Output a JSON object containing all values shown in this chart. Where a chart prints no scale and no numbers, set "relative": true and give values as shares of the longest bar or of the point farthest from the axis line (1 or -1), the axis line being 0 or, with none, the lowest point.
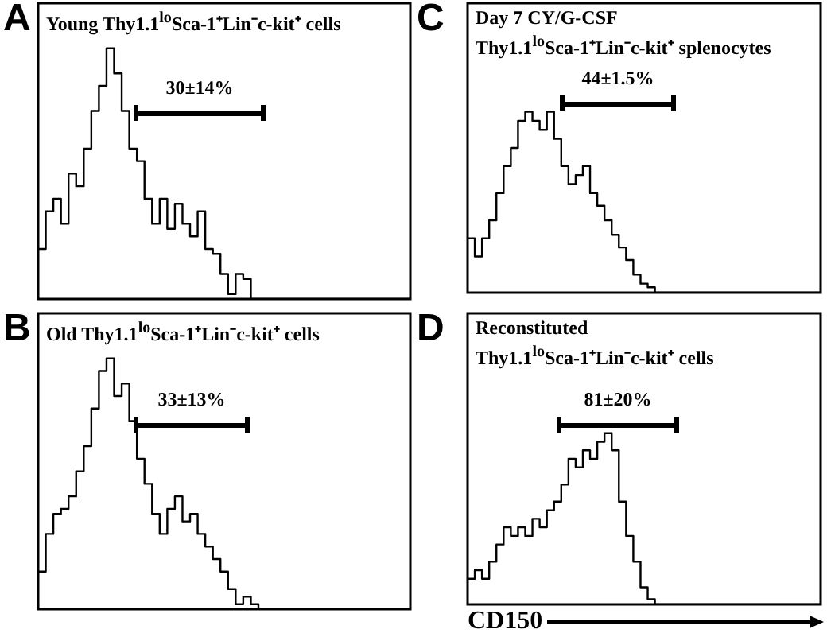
{
  "chart_data": [
    {
      "type": "step",
      "title": "Young Thy1.1$^{lo}$Sca-1⁺Lin⁻c-kit⁺ cells",
      "annotations": [
        "A",
        "30±14%"
      ],
      "relative": true,
      "color": "#000000",
      "categories": [
        null,
        null,
        null,
        null,
        null,
        null,
        null,
        null,
        null,
        null,
        null,
        null,
        null,
        null,
        null,
        null,
        null,
        null,
        null,
        null,
        null,
        null,
        null,
        null,
        null,
        null,
        null,
        null,
        null,
        null,
        null,
        null,
        null,
        null,
        null,
        null,
        null,
        null,
        null,
        null,
        null,
        null,
        null,
        null,
        null,
        null,
        null,
        null,
        null,
        null
      ],
      "values": [
        0.2,
        0.35,
        0.4,
        0.3,
        0.5,
        0.45,
        0.6,
        0.75,
        0.85,
        1.0,
        0.9,
        0.75,
        0.6,
        0.55,
        0.4,
        0.3,
        0.4,
        0.28,
        0.38,
        0.3,
        0.25,
        0.35,
        0.2,
        0.18,
        0.1,
        0.02,
        0.1,
        0.08,
        0,
        0,
        0,
        0,
        0,
        0,
        0,
        0,
        0,
        0,
        0,
        0,
        0,
        0,
        0,
        0,
        0,
        0,
        0,
        0,
        0,
        0
      ]
    },
    {
      "type": "step",
      "title": "Old Thy1.1$^{lo}$Sca-1⁺Lin⁻c-kit⁺ cells",
      "annotations": [
        "B",
        "33±13%"
      ],
      "relative": true,
      "color": "#000000",
      "categories": [
        null,
        null,
        null,
        null,
        null,
        null,
        null,
        null,
        null,
        null,
        null,
        null,
        null,
        null,
        null,
        null,
        null,
        null,
        null,
        null,
        null,
        null,
        null,
        null,
        null,
        null,
        null,
        null,
        null,
        null,
        null,
        null,
        null,
        null,
        null,
        null,
        null,
        null,
        null,
        null,
        null,
        null,
        null,
        null,
        null,
        null,
        null,
        null,
        null,
        null
      ],
      "values": [
        0.15,
        0.3,
        0.38,
        0.4,
        0.45,
        0.55,
        0.65,
        0.8,
        0.95,
        1.0,
        0.85,
        0.9,
        0.75,
        0.6,
        0.5,
        0.38,
        0.3,
        0.4,
        0.45,
        0.35,
        0.38,
        0.3,
        0.25,
        0.2,
        0.15,
        0.08,
        0.02,
        0.05,
        0.02,
        0,
        0,
        0,
        0,
        0,
        0,
        0,
        0,
        0,
        0,
        0,
        0,
        0,
        0,
        0,
        0,
        0,
        0,
        0,
        0,
        0
      ]
    },
    {
      "type": "step",
      "title": "Day 7 CY/G-CSF",
      "subtitle": "Thy1.1$^{lo}$Sca-1⁺Lin⁻c-kit⁺ splenocytes",
      "annotations": [
        "C",
        "44±1.5%"
      ],
      "relative": true,
      "color": "#000000",
      "categories": [
        null,
        null,
        null,
        null,
        null,
        null,
        null,
        null,
        null,
        null,
        null,
        null,
        null,
        null,
        null,
        null,
        null,
        null,
        null,
        null,
        null,
        null,
        null,
        null,
        null,
        null,
        null,
        null,
        null,
        null,
        null,
        null,
        null,
        null,
        null,
        null,
        null,
        null,
        null,
        null,
        null,
        null,
        null,
        null,
        null,
        null,
        null,
        null,
        null,
        null
      ],
      "values": [
        0.3,
        0.2,
        0.3,
        0.4,
        0.55,
        0.7,
        0.8,
        0.95,
        1.0,
        0.95,
        0.9,
        1.0,
        0.85,
        0.7,
        0.6,
        0.65,
        0.7,
        0.55,
        0.48,
        0.4,
        0.32,
        0.25,
        0.18,
        0.1,
        0.05,
        0.03,
        0,
        0,
        0,
        0,
        0,
        0,
        0,
        0,
        0,
        0,
        0,
        0,
        0,
        0,
        0,
        0,
        0,
        0,
        0,
        0,
        0,
        0,
        0,
        0
      ]
    },
    {
      "type": "step",
      "title": "Reconstituted",
      "subtitle": "Thy1.1$^{lo}$Sca-1⁺Lin⁻c-kit⁺ cells",
      "xlabel": "CD150",
      "annotations": [
        "D",
        "81±20%"
      ],
      "relative": true,
      "color": "#000000",
      "categories": [
        null,
        null,
        null,
        null,
        null,
        null,
        null,
        null,
        null,
        null,
        null,
        null,
        null,
        null,
        null,
        null,
        null,
        null,
        null,
        null,
        null,
        null,
        null,
        null,
        null,
        null,
        null,
        null,
        null,
        null,
        null,
        null,
        null,
        null,
        null,
        null,
        null,
        null,
        null,
        null,
        null,
        null,
        null,
        null,
        null,
        null,
        null,
        null,
        null,
        null
      ],
      "values": [
        0.15,
        0.2,
        0.15,
        0.25,
        0.35,
        0.45,
        0.4,
        0.45,
        0.4,
        0.5,
        0.45,
        0.55,
        0.6,
        0.7,
        0.85,
        0.8,
        0.9,
        0.85,
        0.95,
        1.0,
        0.9,
        0.6,
        0.4,
        0.25,
        0.1,
        0.03,
        0,
        0,
        0,
        0,
        0,
        0,
        0,
        0,
        0,
        0,
        0,
        0,
        0,
        0,
        0,
        0,
        0,
        0,
        0,
        0,
        0,
        0,
        0,
        0
      ]
    }
  ]
}
